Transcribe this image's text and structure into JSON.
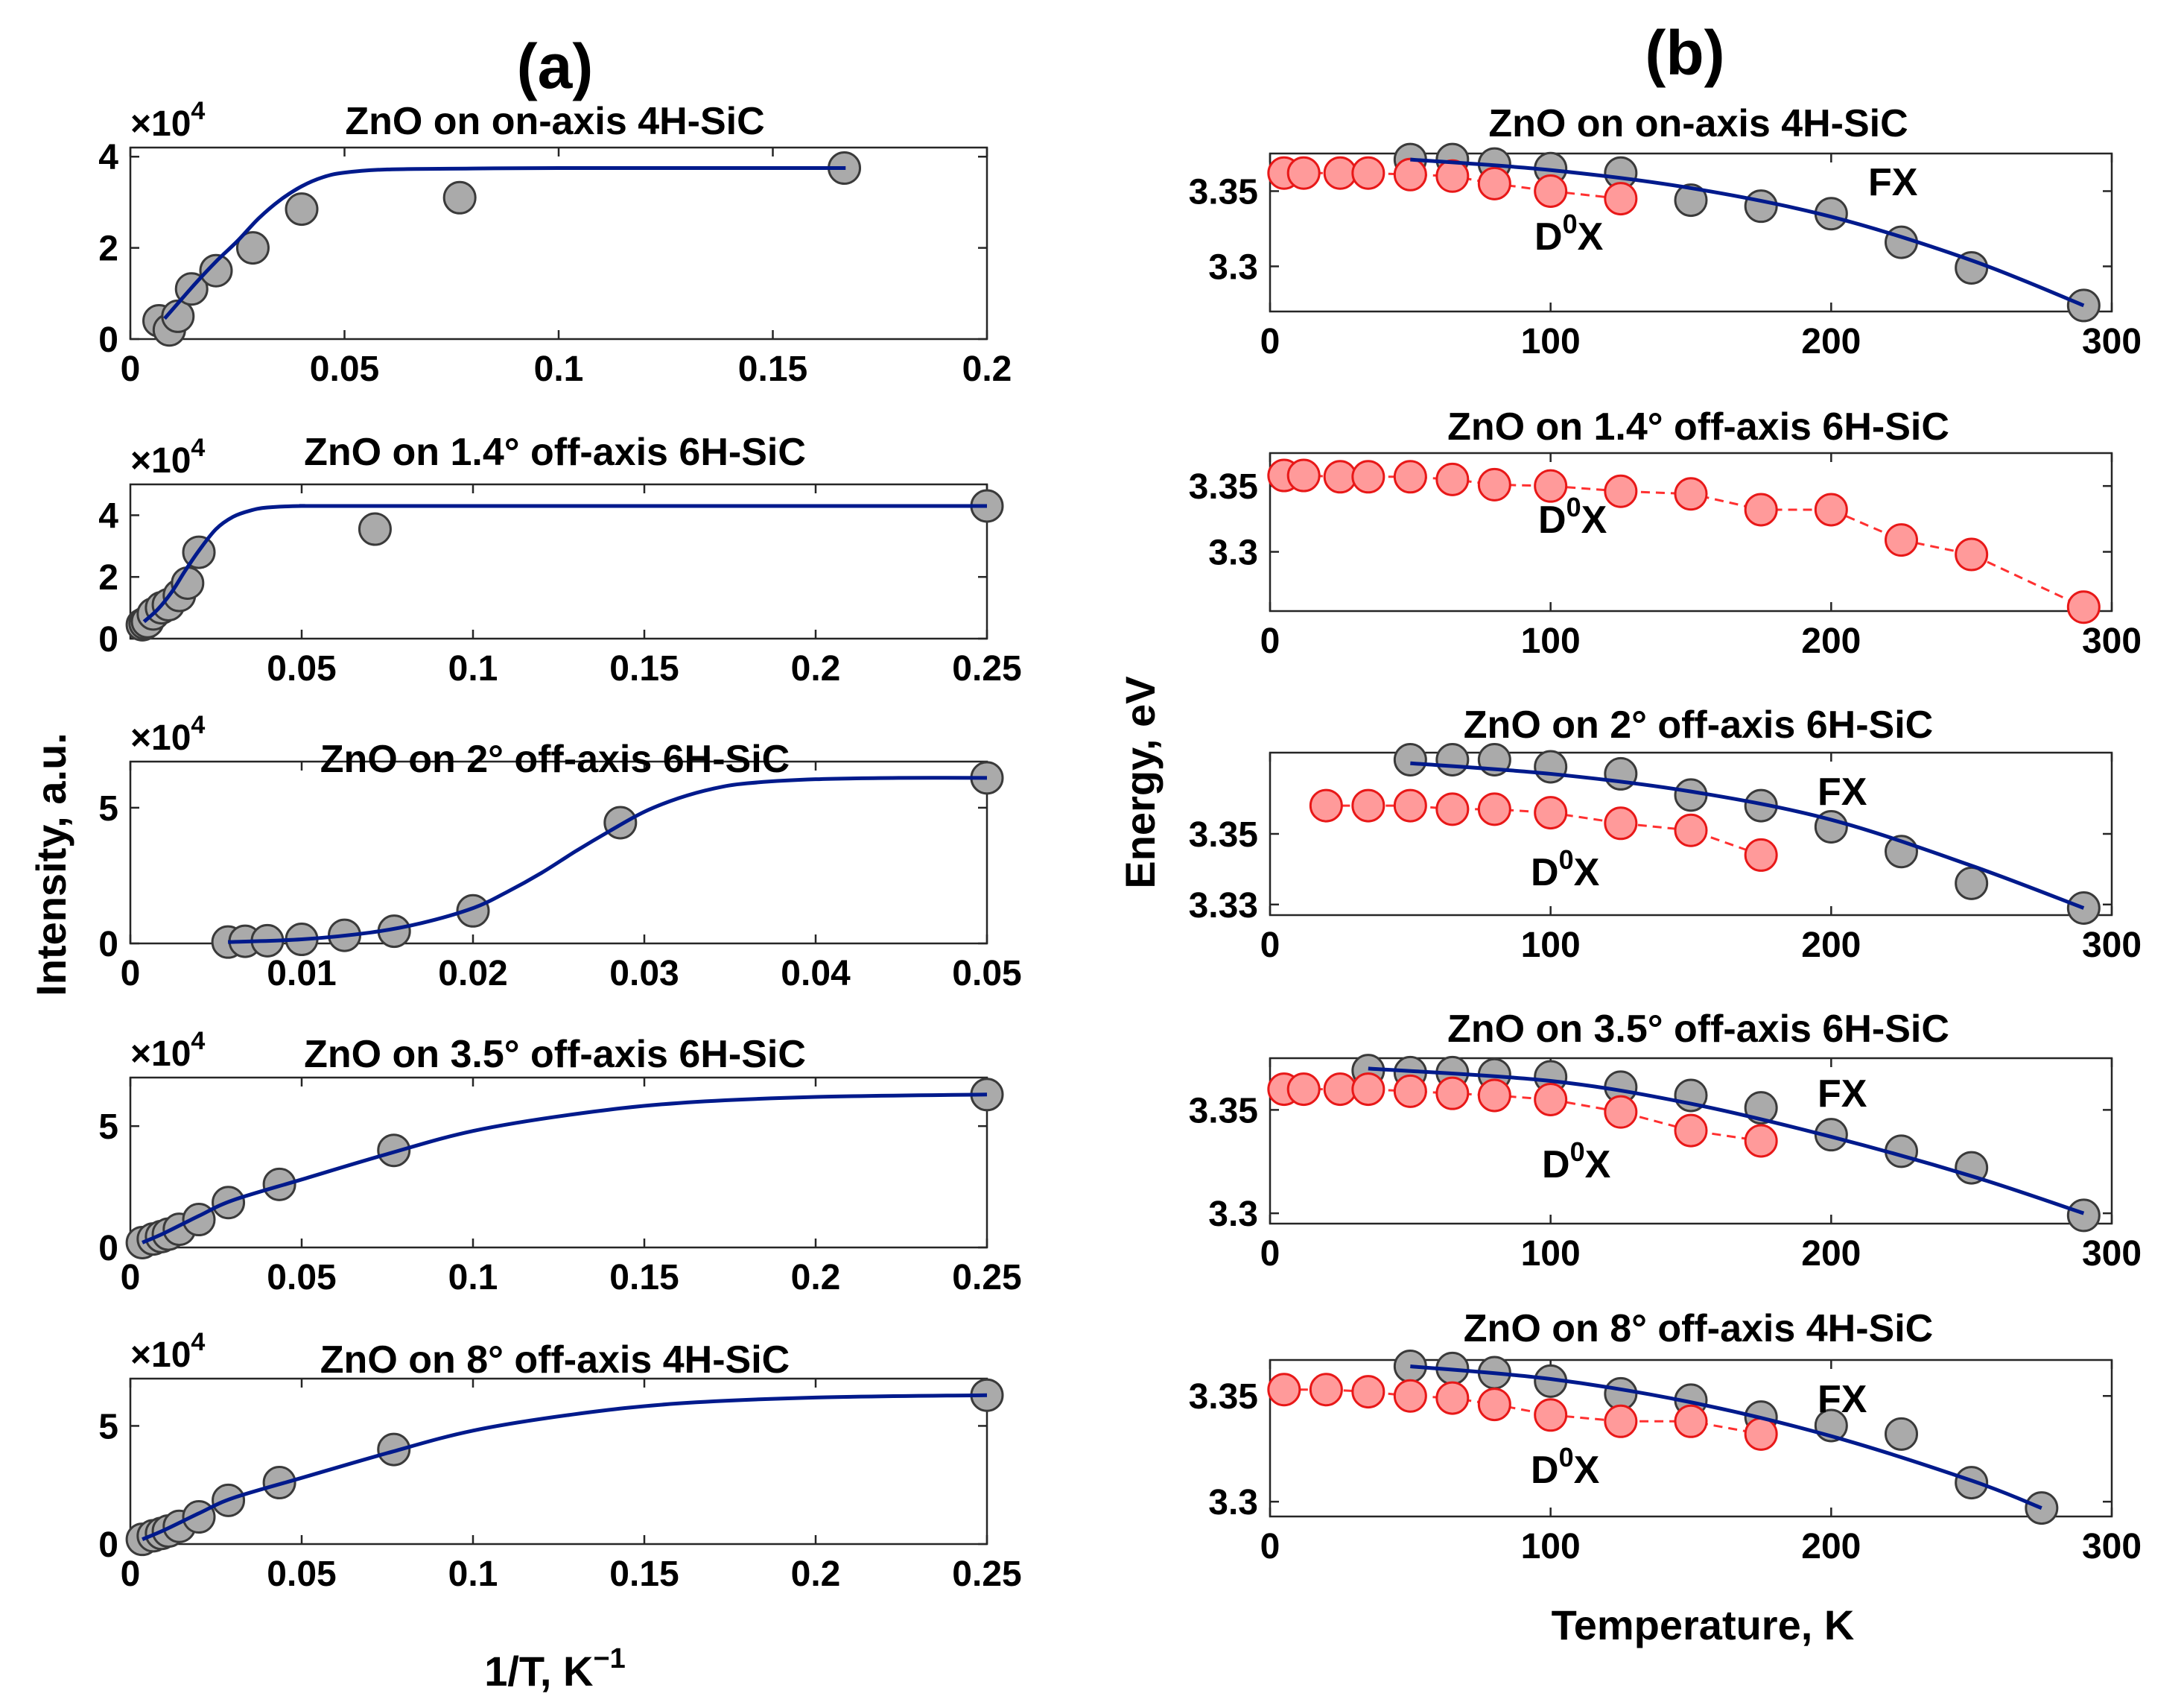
{
  "figure": {
    "label_a": "(a)",
    "label_b": "(b)",
    "ylabel_a": "Intensity, a.u.",
    "xlabel_a": "1/T, K",
    "xlabel_a_sup": "−1",
    "ylabel_b": "Energy, eV",
    "xlabel_b": "Temperature, K",
    "exp_base": "×10",
    "exp_pow": "4",
    "fx_label": "FX",
    "d0x_label": "D",
    "d0x_sup": "0",
    "d0x_tail": "X"
  },
  "colors": {
    "fit_line": "#001a8c",
    "fx_marker": "#aaaaaa",
    "d0x_marker": "#ff9a9a",
    "d0x_edge": "#e81818",
    "d0x_line": "#ff3030"
  },
  "chart_data": [
    {
      "id": "a1",
      "type": "scatter",
      "title": "ZnO on on-axis 4H-SiC",
      "xlim": [
        0,
        0.2
      ],
      "ylim": [
        0,
        4.2
      ],
      "xticks": [
        0,
        0.05,
        0.1,
        0.15,
        0.2
      ],
      "xtick_labels": [
        "0",
        "0.05",
        "0.1",
        "0.15",
        "0.2"
      ],
      "yticks": [
        0,
        2,
        4
      ],
      "ytick_labels": [
        "0",
        "2",
        "4"
      ],
      "multiplier": "×10^4",
      "series": [
        {
          "name": "data",
          "x": [
            0.0067,
            0.0091,
            0.0111,
            0.0143,
            0.02,
            0.0286,
            0.04,
            0.0769,
            0.1667
          ],
          "y": [
            0.4,
            0.2,
            0.5,
            1.1,
            1.5,
            2.0,
            2.85,
            3.1,
            3.75
          ]
        },
        {
          "name": "fit",
          "x": [
            0.008,
            0.015,
            0.02,
            0.025,
            0.03,
            0.035,
            0.04,
            0.045,
            0.05,
            0.06,
            0.08,
            0.1,
            0.167
          ],
          "y": [
            0.45,
            1.2,
            1.7,
            2.15,
            2.65,
            3.05,
            3.35,
            3.55,
            3.65,
            3.72,
            3.74,
            3.75,
            3.75
          ]
        }
      ]
    },
    {
      "id": "a2",
      "type": "scatter",
      "title": "ZnO on 1.4° off-axis 6H-SiC",
      "xlim": [
        0,
        0.25
      ],
      "ylim": [
        0,
        5
      ],
      "xticks": [
        0.05,
        0.1,
        0.15,
        0.2,
        0.25
      ],
      "xtick_labels": [
        "0.05",
        "0.1",
        "0.15",
        "0.2",
        "0.25"
      ],
      "yticks": [
        0,
        2,
        4
      ],
      "ytick_labels": [
        "0",
        "2",
        "4"
      ],
      "multiplier": "×10^4",
      "series": [
        {
          "name": "data",
          "x": [
            0.0035,
            0.0043,
            0.005,
            0.0067,
            0.0091,
            0.0111,
            0.0143,
            0.0167,
            0.02,
            0.0714,
            0.25
          ],
          "y": [
            0.45,
            0.5,
            0.55,
            0.8,
            1.0,
            1.1,
            1.4,
            1.8,
            2.8,
            3.55,
            4.3
          ]
        },
        {
          "name": "fit",
          "x": [
            0.004,
            0.008,
            0.012,
            0.016,
            0.02,
            0.025,
            0.03,
            0.035,
            0.04,
            0.05,
            0.07,
            0.25
          ],
          "y": [
            0.55,
            0.95,
            1.5,
            2.2,
            2.85,
            3.55,
            3.95,
            4.15,
            4.25,
            4.3,
            4.3,
            4.3
          ]
        }
      ]
    },
    {
      "id": "a3",
      "type": "scatter",
      "title": "ZnO on 2° off-axis 6H-SiC",
      "xlim": [
        0,
        0.05
      ],
      "ylim": [
        0,
        6.7
      ],
      "xticks": [
        0,
        0.01,
        0.02,
        0.03,
        0.04,
        0.05
      ],
      "xtick_labels": [
        "0",
        "0.01",
        "0.02",
        "0.03",
        "0.04",
        "0.05"
      ],
      "yticks": [
        0,
        5
      ],
      "ytick_labels": [
        "0",
        "5"
      ],
      "multiplier": "×10^4",
      "series": [
        {
          "name": "data",
          "x": [
            0.0057,
            0.0067,
            0.008,
            0.01,
            0.0125,
            0.0154,
            0.02,
            0.0286,
            0.05
          ],
          "y": [
            0.05,
            0.08,
            0.1,
            0.15,
            0.3,
            0.45,
            1.2,
            4.45,
            6.1
          ]
        },
        {
          "name": "fit",
          "x": [
            0.0057,
            0.01,
            0.014,
            0.017,
            0.02,
            0.022,
            0.024,
            0.026,
            0.028,
            0.03,
            0.032,
            0.034,
            0.036,
            0.04,
            0.045,
            0.05
          ],
          "y": [
            0.05,
            0.15,
            0.4,
            0.75,
            1.3,
            1.9,
            2.6,
            3.4,
            4.15,
            4.85,
            5.35,
            5.7,
            5.9,
            6.05,
            6.1,
            6.1
          ]
        }
      ]
    },
    {
      "id": "a4",
      "type": "scatter",
      "title": "ZnO on 3.5° off-axis 6H-SiC",
      "xlim": [
        0,
        0.25
      ],
      "ylim": [
        0,
        7
      ],
      "xticks": [
        0,
        0.05,
        0.1,
        0.15,
        0.2,
        0.25
      ],
      "xtick_labels": [
        "0",
        "0.05",
        "0.1",
        "0.15",
        "0.2",
        "0.25"
      ],
      "yticks": [
        0,
        5
      ],
      "ytick_labels": [
        "0",
        "5"
      ],
      "multiplier": "×10^4",
      "series": [
        {
          "name": "data",
          "x": [
            0.0035,
            0.0067,
            0.0091,
            0.0111,
            0.0143,
            0.02,
            0.0286,
            0.0435,
            0.0769,
            0.25
          ],
          "y": [
            0.2,
            0.35,
            0.45,
            0.55,
            0.75,
            1.15,
            1.85,
            2.6,
            4.0,
            6.3
          ]
        },
        {
          "name": "fit",
          "x": [
            0.0035,
            0.01,
            0.02,
            0.03,
            0.05,
            0.075,
            0.1,
            0.13,
            0.16,
            0.2,
            0.25
          ],
          "y": [
            0.2,
            0.6,
            1.3,
            1.95,
            2.8,
            3.85,
            4.8,
            5.5,
            5.95,
            6.2,
            6.3
          ]
        }
      ]
    },
    {
      "id": "a5",
      "type": "scatter",
      "title": "ZnO on 8° off-axis 4H-SiC",
      "xlim": [
        0,
        0.25
      ],
      "ylim": [
        0,
        7
      ],
      "xticks": [
        0,
        0.05,
        0.1,
        0.15,
        0.2,
        0.25
      ],
      "xtick_labels": [
        "0",
        "0.05",
        "0.1",
        "0.15",
        "0.2",
        "0.25"
      ],
      "yticks": [
        0,
        5
      ],
      "ytick_labels": [
        "0",
        "5"
      ],
      "multiplier": "×10^4",
      "series": [
        {
          "name": "data",
          "x": [
            0.0035,
            0.0067,
            0.0091,
            0.0111,
            0.0143,
            0.02,
            0.0286,
            0.0435,
            0.0769,
            0.25
          ],
          "y": [
            0.2,
            0.35,
            0.45,
            0.55,
            0.75,
            1.15,
            1.85,
            2.6,
            4.0,
            6.3
          ]
        },
        {
          "name": "fit",
          "x": [
            0.0035,
            0.01,
            0.02,
            0.03,
            0.05,
            0.075,
            0.1,
            0.13,
            0.16,
            0.2,
            0.25
          ],
          "y": [
            0.2,
            0.6,
            1.3,
            1.95,
            2.8,
            3.85,
            4.8,
            5.5,
            5.95,
            6.2,
            6.3
          ]
        }
      ]
    },
    {
      "id": "b1",
      "type": "scatter",
      "title": "ZnO on on-axis 4H-SiC",
      "xlim": [
        0,
        300
      ],
      "ylim": [
        3.27,
        3.375
      ],
      "xticks": [
        0,
        100,
        200,
        300
      ],
      "xtick_labels": [
        "0",
        "100",
        "200",
        "300"
      ],
      "yticks": [
        3.3,
        3.35
      ],
      "ytick_labels": [
        "3.3",
        "3.35"
      ],
      "series": [
        {
          "name": "FX",
          "x": [
            50,
            65,
            80,
            100,
            125,
            150,
            175,
            200,
            225,
            250,
            290
          ],
          "y": [
            3.371,
            3.371,
            3.368,
            3.365,
            3.362,
            3.344,
            3.34,
            3.335,
            3.316,
            3.299,
            3.274
          ]
        },
        {
          "name": "FX fit",
          "x": [
            50,
            100,
            150,
            200,
            250,
            290
          ],
          "y": [
            3.371,
            3.364,
            3.352,
            3.333,
            3.304,
            3.274
          ]
        },
        {
          "name": "D0X",
          "x": [
            5,
            12,
            25,
            35,
            50,
            65,
            80,
            100,
            125
          ],
          "y": [
            3.362,
            3.362,
            3.362,
            3.362,
            3.361,
            3.36,
            3.355,
            3.35,
            3.345
          ]
        }
      ]
    },
    {
      "id": "b2",
      "type": "scatter",
      "title": "ZnO on 1.4° off-axis 6H-SiC",
      "xlim": [
        0,
        300
      ],
      "ylim": [
        3.255,
        3.375
      ],
      "xticks": [
        0,
        100,
        200,
        300
      ],
      "xtick_labels": [
        "0",
        "100",
        "200",
        "300"
      ],
      "yticks": [
        3.3,
        3.35
      ],
      "ytick_labels": [
        "3.3",
        "3.35"
      ],
      "series": [
        {
          "name": "D0X",
          "x": [
            5,
            12,
            25,
            35,
            50,
            65,
            80,
            100,
            125,
            150,
            175,
            200,
            225,
            250,
            290
          ],
          "y": [
            3.358,
            3.358,
            3.357,
            3.357,
            3.357,
            3.355,
            3.351,
            3.35,
            3.346,
            3.344,
            3.332,
            3.332,
            3.309,
            3.298,
            3.258
          ]
        }
      ]
    },
    {
      "id": "b3",
      "type": "scatter",
      "title": "ZnO on 2° off-axis 6H-SiC",
      "xlim": [
        0,
        300
      ],
      "ylim": [
        3.327,
        3.373
      ],
      "xticks": [
        0,
        100,
        200,
        300
      ],
      "xtick_labels": [
        "0",
        "100",
        "200",
        "300"
      ],
      "yticks": [
        3.33,
        3.35
      ],
      "ytick_labels": [
        "3.33",
        "3.35"
      ],
      "series": [
        {
          "name": "FX",
          "x": [
            50,
            65,
            80,
            100,
            125,
            150,
            175,
            200,
            225,
            250,
            290
          ],
          "y": [
            3.371,
            3.371,
            3.371,
            3.369,
            3.367,
            3.361,
            3.358,
            3.352,
            3.345,
            3.336,
            3.329
          ]
        },
        {
          "name": "FX fit",
          "x": [
            50,
            100,
            150,
            200,
            250,
            290
          ],
          "y": [
            3.37,
            3.367,
            3.362,
            3.354,
            3.341,
            3.329
          ]
        },
        {
          "name": "D0X",
          "x": [
            20,
            35,
            50,
            65,
            80,
            100,
            125,
            150,
            175
          ],
          "y": [
            3.358,
            3.358,
            3.358,
            3.357,
            3.357,
            3.356,
            3.353,
            3.351,
            3.344
          ]
        }
      ]
    },
    {
      "id": "b4",
      "type": "scatter",
      "title": "ZnO on 3.5° off-axis 6H-SiC",
      "xlim": [
        0,
        300
      ],
      "ylim": [
        3.295,
        3.375
      ],
      "xticks": [
        0,
        100,
        200,
        300
      ],
      "xtick_labels": [
        "0",
        "100",
        "200",
        "300"
      ],
      "yticks": [
        3.3,
        3.35
      ],
      "ytick_labels": [
        "3.3",
        "3.35"
      ],
      "series": [
        {
          "name": "FX",
          "x": [
            35,
            50,
            65,
            80,
            100,
            125,
            150,
            175,
            200,
            225,
            250,
            290
          ],
          "y": [
            3.369,
            3.368,
            3.368,
            3.367,
            3.366,
            3.361,
            3.357,
            3.351,
            3.338,
            3.33,
            3.322,
            3.299
          ]
        },
        {
          "name": "FX fit",
          "x": [
            35,
            100,
            150,
            200,
            250,
            290
          ],
          "y": [
            3.37,
            3.364,
            3.353,
            3.337,
            3.318,
            3.3
          ]
        },
        {
          "name": "D0X",
          "x": [
            5,
            12,
            25,
            35,
            50,
            65,
            80,
            100,
            125,
            150,
            175
          ],
          "y": [
            3.36,
            3.36,
            3.36,
            3.36,
            3.359,
            3.358,
            3.357,
            3.355,
            3.349,
            3.34,
            3.335
          ]
        }
      ]
    },
    {
      "id": "b5",
      "type": "scatter",
      "title": "ZnO on 8° off-axis 4H-SiC",
      "xlim": [
        0,
        300
      ],
      "ylim": [
        3.293,
        3.367
      ],
      "xticks": [
        0,
        100,
        200,
        300
      ],
      "xtick_labels": [
        "0",
        "100",
        "200",
        "300"
      ],
      "yticks": [
        3.3,
        3.35
      ],
      "ytick_labels": [
        "3.3",
        "3.35"
      ],
      "series": [
        {
          "name": "FX",
          "x": [
            50,
            65,
            80,
            100,
            125,
            150,
            175,
            200,
            225,
            250,
            275
          ],
          "y": [
            3.364,
            3.363,
            3.361,
            3.357,
            3.351,
            3.348,
            3.34,
            3.336,
            3.332,
            3.309,
            3.297
          ]
        },
        {
          "name": "FX fit",
          "x": [
            50,
            100,
            150,
            200,
            250,
            275
          ],
          "y": [
            3.364,
            3.358,
            3.347,
            3.331,
            3.31,
            3.297
          ]
        },
        {
          "name": "D0X",
          "x": [
            5,
            20,
            35,
            50,
            65,
            80,
            100,
            125,
            150,
            175
          ],
          "y": [
            3.353,
            3.353,
            3.352,
            3.35,
            3.349,
            3.346,
            3.341,
            3.338,
            3.338,
            3.332
          ]
        }
      ]
    }
  ]
}
